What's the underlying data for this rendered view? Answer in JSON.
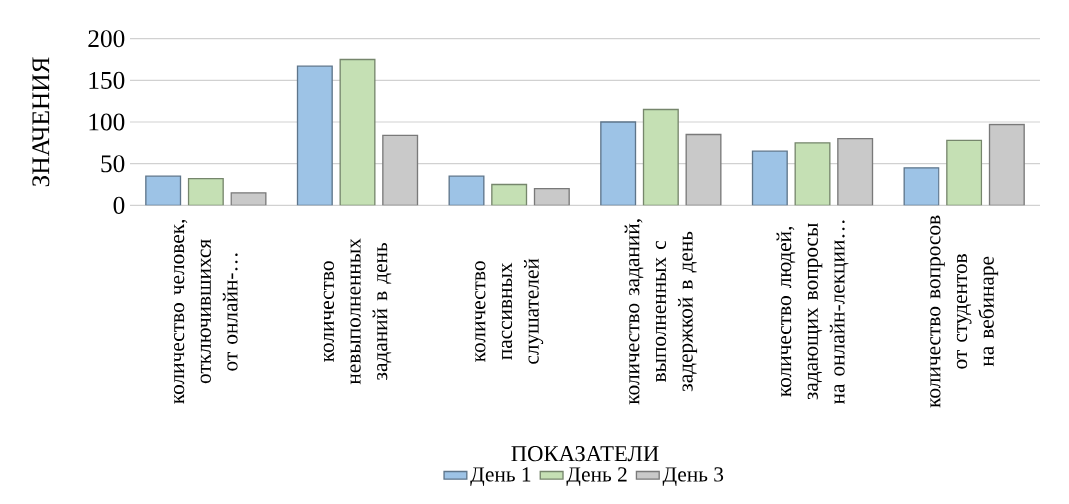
{
  "chart_data": {
    "type": "bar",
    "xlabel": "ПОКАЗАТЕЛИ",
    "ylabel": "ЗНАЧЕНИЯ",
    "categories": [
      "количество человек, отключившихся от онлайн-…",
      "количество невыполненных заданий в день",
      "количество пассивных слушателей",
      "количество заданий, выполненных с задержкой в день",
      "количество людей, задающих вопросы на онлайн-лекции…",
      "количество вопросов от студентов на вебинаре"
    ],
    "series": [
      {
        "name": "День 1",
        "color": "#9dc3e6",
        "values": [
          35,
          167,
          35,
          100,
          65,
          45
        ]
      },
      {
        "name": "День 2",
        "color": "#c5e0b4",
        "values": [
          32,
          175,
          25,
          115,
          75,
          78
        ]
      },
      {
        "name": "День 3",
        "color": "#c9c9c9",
        "values": [
          15,
          84,
          20,
          85,
          80,
          97
        ]
      }
    ],
    "ylim": [
      0,
      200
    ],
    "yticks": [
      0,
      50,
      100,
      150,
      200
    ],
    "grid": "y",
    "legend": "bottom"
  }
}
